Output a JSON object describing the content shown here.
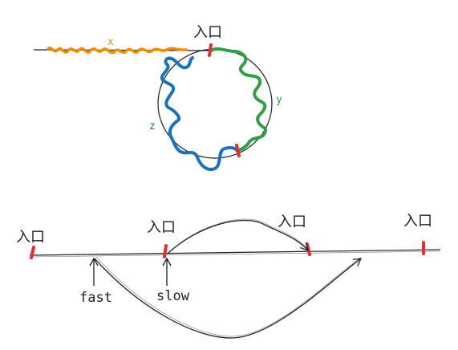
{
  "top_diagram": {
    "entry_label": "入口",
    "segment_x_label": "x",
    "segment_y_label": "y",
    "segment_z_label": "z",
    "colors": {
      "x": "#f08c00",
      "y": "#2f9e44",
      "z": "#1971c2",
      "marker": "#e03131",
      "stroke": "#1e1e1e"
    }
  },
  "bottom_diagram": {
    "entry_labels": [
      "入口",
      "入口",
      "入口",
      "入口"
    ],
    "fast_label": "fast",
    "slow_label": "slow"
  }
}
